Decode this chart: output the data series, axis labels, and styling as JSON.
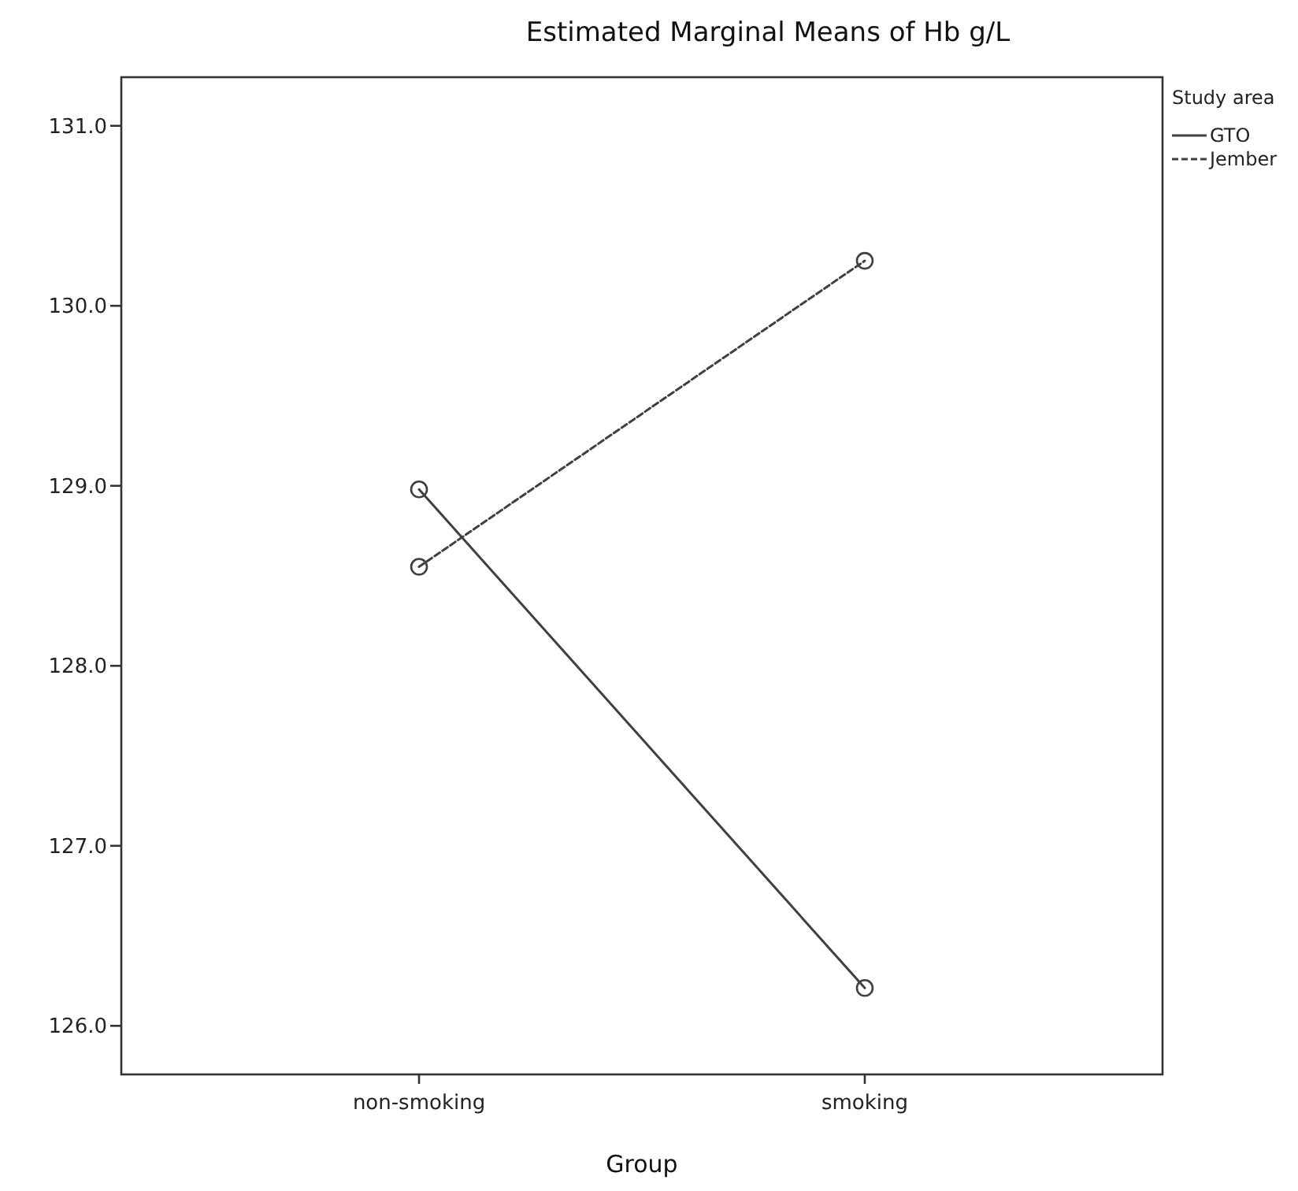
{
  "chart_data": {
    "type": "line",
    "title": "Estimated Marginal Means of Hb g/L",
    "xlabel": "Group",
    "legend_title": "Study area",
    "legend": "top right",
    "marker": "circle",
    "categories": [
      "non-smoking",
      "smoking"
    ],
    "series": [
      {
        "name": "GTO",
        "color": "#404040",
        "line_style": "solid",
        "values": [
          128.98,
          126.21
        ]
      },
      {
        "name": "Jember",
        "color": "#404040",
        "line_style": "dashed",
        "values": [
          128.55,
          130.25
        ]
      }
    ],
    "ylim": [
      125.73,
      131.27
    ],
    "yticks": [
      {
        "value": 126,
        "label": "126.0"
      },
      {
        "value": 127,
        "label": "127.0"
      },
      {
        "value": 128,
        "label": "128.0"
      },
      {
        "value": 129,
        "label": "129.0"
      },
      {
        "value": 130,
        "label": "130.0"
      },
      {
        "value": 131,
        "label": "131.0"
      }
    ],
    "grid": false
  }
}
